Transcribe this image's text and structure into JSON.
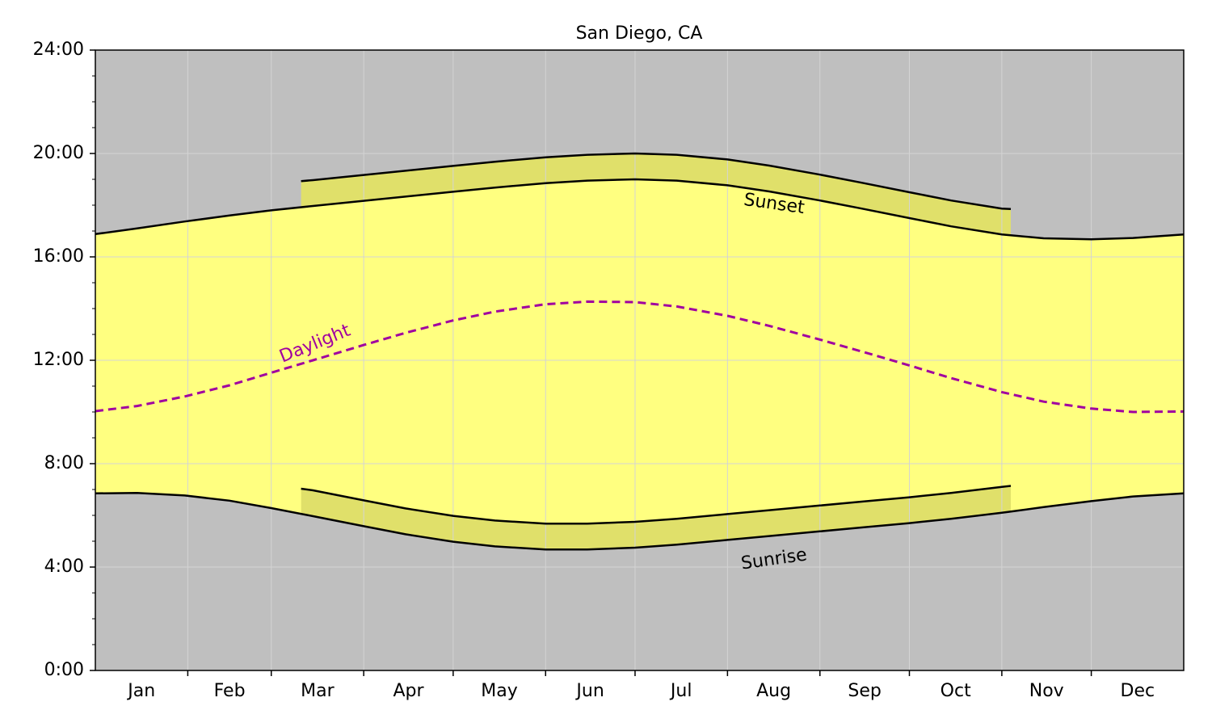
{
  "chart_data": {
    "type": "line",
    "title": "San Diego, CA",
    "categories": [
      "Jan",
      "Feb",
      "Mar",
      "Apr",
      "May",
      "Jun",
      "Jul",
      "Aug",
      "Sep",
      "Oct",
      "Nov",
      "Dec"
    ],
    "xlim": [
      0,
      365
    ],
    "xticks": [
      31,
      59,
      90,
      120,
      151,
      181,
      212,
      243,
      273,
      304,
      334
    ],
    "ylim": [
      0,
      24
    ],
    "yticks": [
      {
        "value": 0,
        "label": "0:00"
      },
      {
        "value": 4,
        "label": "4:00"
      },
      {
        "value": 8,
        "label": "8:00"
      },
      {
        "value": 12,
        "label": "12:00"
      },
      {
        "value": 16,
        "label": "16:00"
      },
      {
        "value": 20,
        "label": "20:00"
      },
      {
        "value": 24,
        "label": "24:00"
      }
    ],
    "yminorticks": [
      1,
      2,
      3,
      5,
      6,
      7,
      9,
      10,
      11,
      13,
      14,
      15,
      17,
      18,
      19,
      21,
      22,
      23
    ],
    "grid": true,
    "facecolor": "#bfbfbf",
    "series": [
      {
        "color": "#000000",
        "linestyle": "solid",
        "x": [
          0,
          14,
          30,
          45,
          59,
          73,
          90,
          104,
          120,
          134,
          151,
          165,
          181,
          195,
          212,
          226,
          243,
          257,
          273,
          287,
          304,
          318,
          334,
          348,
          365
        ],
        "values": [
          6.85,
          6.87,
          6.77,
          6.57,
          6.28,
          5.97,
          5.58,
          5.27,
          4.98,
          4.8,
          4.68,
          4.68,
          4.75,
          4.87,
          5.05,
          5.2,
          5.38,
          5.53,
          5.7,
          5.87,
          6.1,
          6.32,
          6.55,
          6.73,
          6.85
        ]
      },
      {
        "color": "#000000",
        "linestyle": "solid",
        "x": [
          0,
          14,
          30,
          45,
          59,
          73,
          90,
          104,
          120,
          134,
          151,
          165,
          181,
          195,
          212,
          226,
          243,
          257,
          273,
          287,
          304,
          318,
          334,
          348,
          365
        ],
        "values": [
          16.88,
          17.1,
          17.37,
          17.6,
          17.8,
          17.97,
          18.17,
          18.33,
          18.52,
          18.68,
          18.85,
          18.95,
          19.0,
          18.95,
          18.77,
          18.53,
          18.18,
          17.87,
          17.5,
          17.18,
          16.87,
          16.72,
          16.68,
          16.73,
          16.87
        ]
      },
      {
        "color": "#a000a0",
        "linestyle": "dashed",
        "x": [
          0,
          14,
          30,
          45,
          59,
          73,
          90,
          104,
          120,
          134,
          151,
          165,
          181,
          195,
          212,
          226,
          243,
          257,
          273,
          287,
          304,
          318,
          334,
          348,
          365
        ],
        "values": [
          10.03,
          10.23,
          10.6,
          11.03,
          11.52,
          12.0,
          12.59,
          13.06,
          13.54,
          13.88,
          14.17,
          14.27,
          14.25,
          14.08,
          13.72,
          13.33,
          12.8,
          12.34,
          11.8,
          11.31,
          10.77,
          10.4,
          10.13,
          10.0,
          10.02
        ]
      },
      {
        "color": "#000000",
        "linestyle": "solid",
        "x": [
          69,
          73,
          90,
          104,
          120,
          134,
          151,
          165,
          181,
          195,
          212,
          226,
          243,
          257,
          273,
          287,
          304,
          307
        ],
        "values": [
          7.03,
          6.97,
          6.58,
          6.27,
          5.98,
          5.8,
          5.68,
          5.68,
          5.75,
          5.87,
          6.05,
          6.2,
          6.38,
          6.53,
          6.7,
          6.87,
          7.1,
          7.14
        ]
      },
      {
        "color": "#000000",
        "linestyle": "solid",
        "x": [
          69,
          73,
          90,
          104,
          120,
          134,
          151,
          165,
          181,
          195,
          212,
          226,
          243,
          257,
          273,
          287,
          304,
          307
        ],
        "values": [
          18.93,
          18.97,
          19.17,
          19.33,
          19.52,
          19.68,
          19.85,
          19.95,
          20.0,
          19.95,
          19.77,
          19.53,
          19.18,
          18.87,
          18.5,
          18.18,
          17.87,
          17.85
        ]
      }
    ],
    "fills": [
      {
        "series": [
          0,
          1
        ],
        "color": "#ffff80"
      },
      {
        "series": [
          3,
          0
        ],
        "color": "#e0e06a"
      },
      {
        "series": [
          4,
          1
        ],
        "color": "#e0e06a"
      }
    ],
    "annotations": [
      {
        "text": "Sunset",
        "color": "#000000"
      },
      {
        "text": "Sunrise",
        "color": "#000000"
      },
      {
        "text": "Daylight",
        "color": "#a000a0"
      }
    ]
  }
}
